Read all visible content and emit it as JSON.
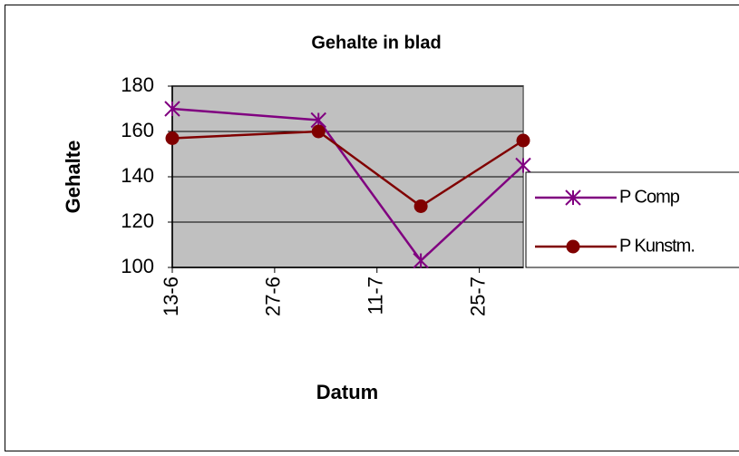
{
  "chart_data": {
    "type": "line",
    "title": "Gehalte in blad",
    "x_label": "Datum",
    "y_label": "Gehalte",
    "x": [
      "13-6",
      "3-7",
      "17-7",
      "31-7"
    ],
    "xlim": [
      "13-6",
      "31-7"
    ],
    "xticks": [
      "13-6",
      "27-6",
      "11-7",
      "25-7"
    ],
    "ylim": [
      100,
      180
    ],
    "yticks": [
      100,
      120,
      140,
      160,
      180
    ],
    "grid": true,
    "legend": "right",
    "series": [
      {
        "name": "P Comp",
        "color": "#800080",
        "marker": "star",
        "values": [
          170,
          165,
          103,
          145
        ]
      },
      {
        "name": "P Kunstm.",
        "color": "#800000",
        "marker": "circle",
        "values": [
          157,
          160,
          127,
          156
        ]
      }
    ]
  }
}
